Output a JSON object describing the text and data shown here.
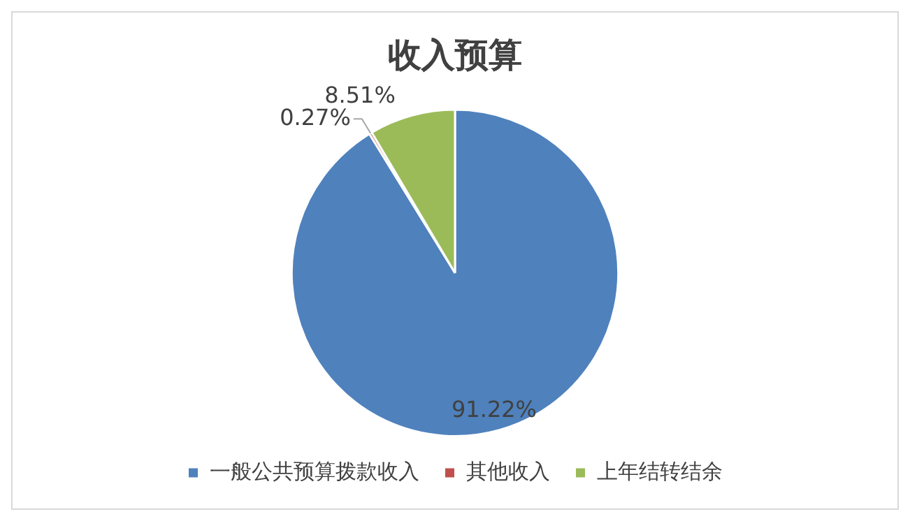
{
  "chart_data": {
    "type": "pie",
    "title": "收入预算",
    "categories": [
      "一般公共预算拨款收入",
      "其他收入",
      "上年结转结余"
    ],
    "values": [
      91.22,
      0.27,
      8.51
    ],
    "colors": [
      "#4f81bd",
      "#c0504d",
      "#9bbb59"
    ],
    "value_labels": [
      "91.22%",
      "0.27%",
      "8.51%"
    ],
    "legend": "bottom"
  }
}
